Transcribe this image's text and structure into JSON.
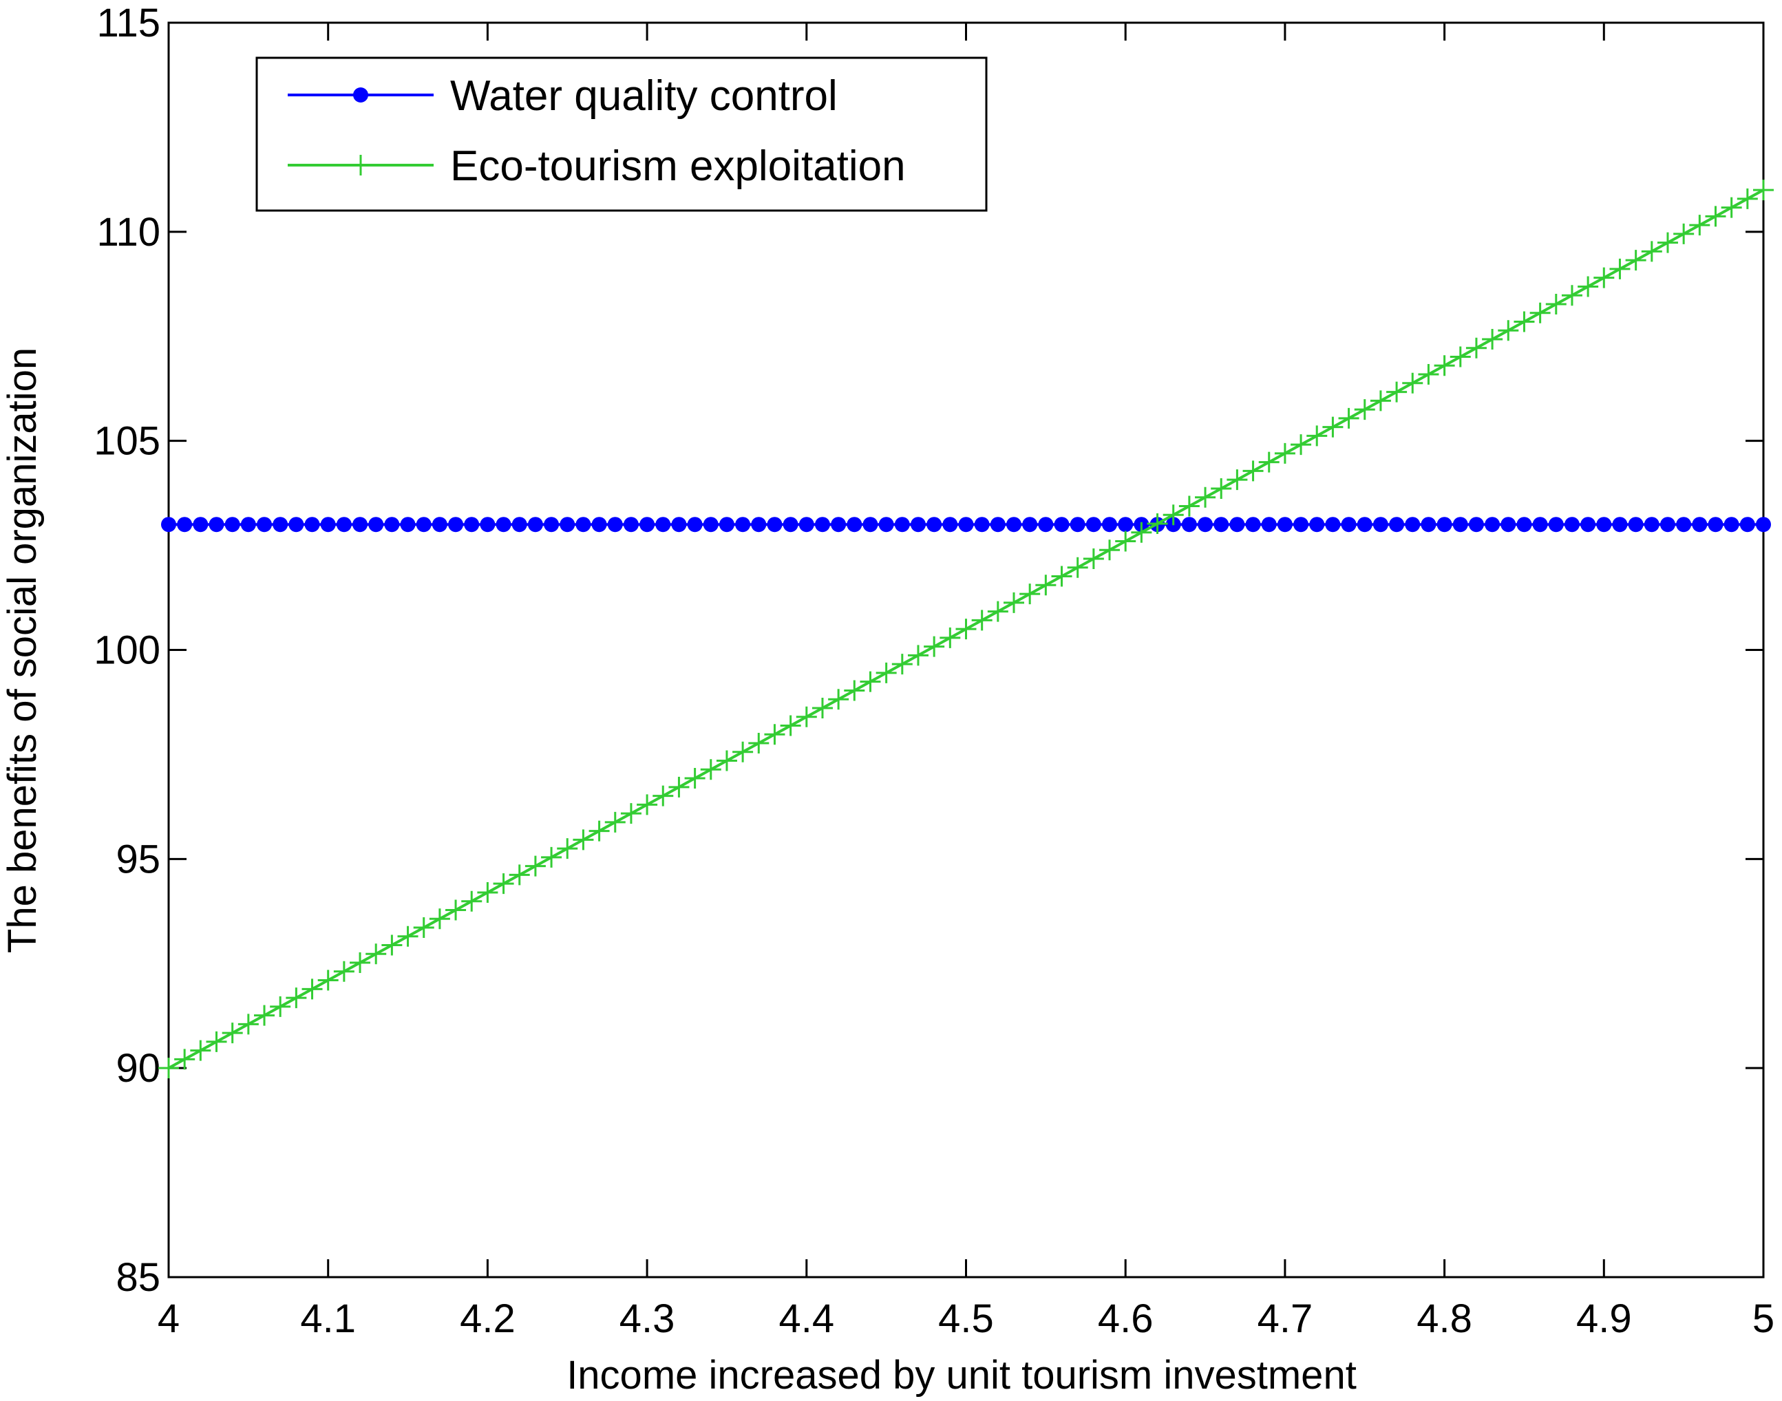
{
  "chart_data": {
    "type": "line",
    "title": "",
    "xlabel": "Income increased by unit tourism investment",
    "ylabel": "The benefits of social organization",
    "xlim": [
      4,
      5
    ],
    "ylim": [
      85,
      115
    ],
    "xticks": [
      "4",
      "4.1",
      "4.2",
      "4.3",
      "4.4",
      "4.5",
      "4.6",
      "4.7",
      "4.8",
      "4.9",
      "5"
    ],
    "yticks": [
      "85",
      "90",
      "95",
      "100",
      "105",
      "110",
      "115"
    ],
    "grid": false,
    "legend_position": "top-left",
    "series": [
      {
        "name": "Water quality control",
        "color": "#0000ff",
        "marker": "dot",
        "x_start": 4,
        "x_end": 5,
        "n_points": 101,
        "y_start": 103,
        "y_end": 103
      },
      {
        "name": "Eco-tourism exploitation",
        "color": "#33cc33",
        "marker": "plus",
        "x_start": 4,
        "x_end": 5,
        "n_points": 101,
        "y_start": 90,
        "y_end": 111
      }
    ]
  }
}
